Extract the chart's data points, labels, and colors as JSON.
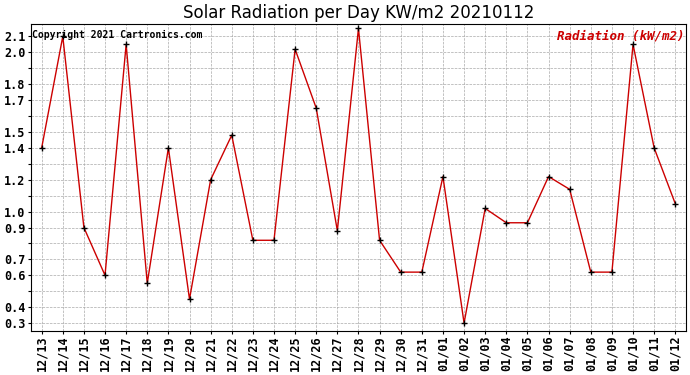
{
  "title": "Solar Radiation per Day KW/m2 20210112",
  "copyright_text": "Copyright 2021 Cartronics.com",
  "legend_label": "Radiation (kW/m2)",
  "labels": [
    "12/13",
    "12/14",
    "12/15",
    "12/16",
    "12/17",
    "12/18",
    "12/19",
    "12/20",
    "12/21",
    "12/22",
    "12/23",
    "12/24",
    "12/25",
    "12/26",
    "12/27",
    "12/28",
    "12/29",
    "12/30",
    "12/31",
    "01/01",
    "01/02",
    "01/03",
    "01/04",
    "01/05",
    "01/06",
    "01/07",
    "01/08",
    "01/09",
    "01/10",
    "01/11",
    "01/12"
  ],
  "values": [
    1.4,
    2.1,
    0.9,
    0.6,
    2.05,
    0.55,
    1.4,
    0.45,
    1.2,
    1.48,
    0.82,
    0.82,
    2.02,
    1.65,
    0.88,
    2.15,
    0.82,
    0.62,
    0.62,
    1.22,
    0.3,
    1.02,
    0.93,
    0.93,
    1.22,
    1.14,
    0.62,
    0.62,
    2.05,
    1.4,
    1.05
  ],
  "line_color": "#cc0000",
  "marker_color": "#000000",
  "background_color": "#ffffff",
  "grid_color": "#aaaaaa",
  "ylim_min": 0.25,
  "ylim_max": 2.18,
  "ytick_vals": [
    0.3,
    0.4,
    0.5,
    0.6,
    0.7,
    0.8,
    0.9,
    1.0,
    1.1,
    1.2,
    1.3,
    1.4,
    1.5,
    1.6,
    1.7,
    1.8,
    1.9,
    2.0,
    2.1
  ],
  "ytick_shown": [
    0.3,
    0.4,
    0.6,
    0.7,
    0.9,
    1.0,
    1.2,
    1.4,
    1.5,
    1.7,
    1.8,
    2.0,
    2.1
  ],
  "title_fontsize": 12,
  "copyright_fontsize": 7,
  "legend_fontsize": 9,
  "tick_fontsize": 8.5
}
